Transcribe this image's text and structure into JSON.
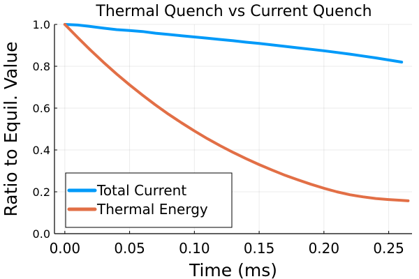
{
  "chart_data": {
    "type": "line",
    "title": "Thermal Quench vs Current Quench",
    "xlabel": "Time (ms)",
    "ylabel": "Ratio to Equil. Value",
    "xlim": [
      -0.008,
      0.268
    ],
    "ylim": [
      0.0,
      1.0
    ],
    "xticks": [
      0.0,
      0.05,
      0.1,
      0.15,
      0.2,
      0.25
    ],
    "xtick_labels": [
      "0.00",
      "0.05",
      "0.10",
      "0.15",
      "0.20",
      "0.25"
    ],
    "yticks": [
      0.0,
      0.2,
      0.4,
      0.6,
      0.8,
      1.0
    ],
    "ytick_labels": [
      "0.0",
      "0.2",
      "0.4",
      "0.6",
      "0.8",
      "1.0"
    ],
    "grid": true,
    "legend_position": "bottom-left",
    "series": [
      {
        "name": "Total Current",
        "color": "#009af9",
        "x": [
          0.0,
          0.01,
          0.02,
          0.03,
          0.04,
          0.05,
          0.06,
          0.07,
          0.08,
          0.09,
          0.1,
          0.11,
          0.12,
          0.13,
          0.14,
          0.15,
          0.16,
          0.17,
          0.18,
          0.19,
          0.2,
          0.21,
          0.22,
          0.23,
          0.24,
          0.25,
          0.26
        ],
        "y": [
          1.0,
          0.997,
          0.99,
          0.982,
          0.975,
          0.971,
          0.966,
          0.958,
          0.952,
          0.946,
          0.94,
          0.934,
          0.928,
          0.922,
          0.915,
          0.909,
          0.902,
          0.895,
          0.888,
          0.881,
          0.874,
          0.866,
          0.858,
          0.849,
          0.84,
          0.83,
          0.82
        ]
      },
      {
        "name": "Thermal Energy",
        "color": "#e26f46",
        "x": [
          0.0,
          0.01,
          0.02,
          0.03,
          0.04,
          0.05,
          0.06,
          0.07,
          0.08,
          0.09,
          0.1,
          0.11,
          0.12,
          0.13,
          0.14,
          0.15,
          0.16,
          0.17,
          0.18,
          0.19,
          0.2,
          0.21,
          0.22,
          0.23,
          0.24,
          0.25,
          0.26,
          0.265
        ],
        "y": [
          1.0,
          0.937,
          0.876,
          0.818,
          0.763,
          0.711,
          0.662,
          0.615,
          0.571,
          0.53,
          0.491,
          0.454,
          0.42,
          0.388,
          0.358,
          0.33,
          0.304,
          0.279,
          0.257,
          0.236,
          0.217,
          0.2,
          0.186,
          0.176,
          0.168,
          0.163,
          0.159,
          0.157
        ]
      }
    ]
  }
}
